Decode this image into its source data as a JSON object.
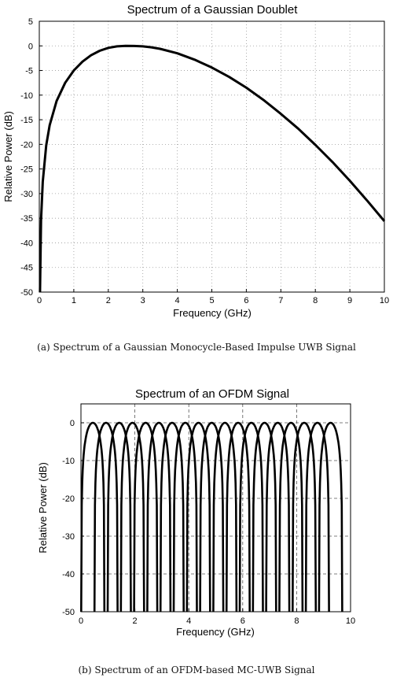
{
  "chart_data": [
    {
      "type": "line",
      "title": "Spectrum of a Gaussian Doublet",
      "xlabel": "Frequency (GHz)",
      "ylabel": "Relative Power (dB)",
      "xlim": [
        0,
        10
      ],
      "ylim": [
        -50,
        5
      ],
      "xticks": [
        "0",
        "1",
        "2",
        "3",
        "4",
        "5",
        "6",
        "7",
        "8",
        "9",
        "10"
      ],
      "yticks": [
        "5",
        "0",
        "-5",
        "-10",
        "-15",
        "-20",
        "-25",
        "-30",
        "-35",
        "-40",
        "-45",
        "-50"
      ],
      "grid": true,
      "series": [
        {
          "x": [
            0.02,
            0.05,
            0.1,
            0.2,
            0.3,
            0.5,
            0.75,
            1.0,
            1.25,
            1.5,
            1.75,
            2.0,
            2.25,
            2.5,
            2.75,
            3.0,
            3.25,
            3.5,
            4.0,
            4.5,
            5.0,
            5.5,
            6.0,
            6.5,
            7.0,
            7.5,
            8.0,
            8.5,
            9.0,
            9.5,
            10.0
          ],
          "y": [
            -50.0,
            -35.5,
            -27.6,
            -20.2,
            -16.1,
            -11.2,
            -7.5,
            -5.0,
            -3.2,
            -1.9,
            -1.0,
            -0.4,
            -0.1,
            0.0,
            -0.02,
            -0.1,
            -0.3,
            -0.6,
            -1.5,
            -2.8,
            -4.4,
            -6.3,
            -8.5,
            -11.0,
            -13.8,
            -16.8,
            -20.1,
            -23.6,
            -27.4,
            -31.4,
            -35.6
          ]
        }
      ]
    },
    {
      "type": "line",
      "title": "Spectrum of an OFDM Signal",
      "xlabel": "Frequency (GHz)",
      "ylabel": "Relative Power (dB)",
      "xlim": [
        0,
        10
      ],
      "ylim": [
        -50,
        5
      ],
      "xticks": [
        "0",
        "2",
        "4",
        "6",
        "8",
        "10"
      ],
      "yticks": [
        "0",
        "-10",
        "-20",
        "-30",
        "-40",
        "-50"
      ],
      "grid": true,
      "subcarriers": {
        "count": 19,
        "first_center_ghz": 0.44,
        "spacing_ghz": 0.49,
        "peak_db": 0,
        "null_halfwidth_ghz": 0.43
      }
    }
  ],
  "captions": {
    "a": "(a) Spectrum of a Gaussian Monocycle-Based Impulse UWB Signal",
    "b": "(b) Spectrum of an OFDM-based MC-UWB Signal"
  }
}
